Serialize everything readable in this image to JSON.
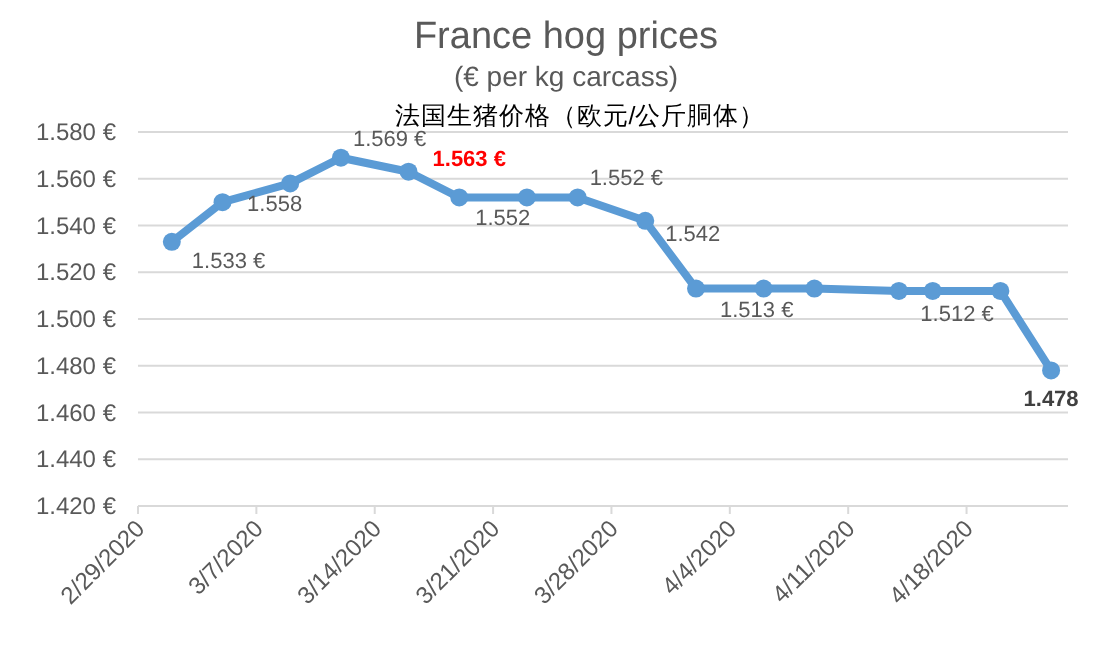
{
  "chart_data": {
    "type": "line",
    "title": "France hog prices",
    "subtitle": "(€ per kg carcass)",
    "annotations": [
      "法国生猪价格（欧元/公斤胴体）"
    ],
    "x": [
      "2020-03-02",
      "2020-03-05",
      "2020-03-09",
      "2020-03-12",
      "2020-03-16",
      "2020-03-19",
      "2020-03-23",
      "2020-03-26",
      "2020-03-30",
      "2020-04-02",
      "2020-04-06",
      "2020-04-09",
      "2020-04-14",
      "2020-04-16",
      "2020-04-20",
      "2020-04-23"
    ],
    "series": [
      {
        "color": "#5b9bd5",
        "values": [
          1.533,
          1.55,
          1.558,
          1.569,
          1.563,
          1.552,
          1.552,
          1.552,
          1.542,
          1.513,
          1.513,
          1.513,
          1.512,
          1.512,
          1.512,
          1.478
        ],
        "value_labels": [
          "1.533 €",
          null,
          "1.558",
          "1.569 €",
          "1.563 €",
          "1.552",
          null,
          "1.552 €",
          "1.542",
          "1.513 €",
          null,
          null,
          null,
          null,
          "1.512 €",
          "1.478"
        ]
      }
    ],
    "xlim": [
      "2020-02-29",
      "2020-04-24"
    ],
    "xticks": [
      {
        "value": "2020-02-29",
        "label": "2/29/2020"
      },
      {
        "value": "2020-03-07",
        "label": "3/7/2020"
      },
      {
        "value": "2020-03-14",
        "label": "3/14/2020"
      },
      {
        "value": "2020-03-21",
        "label": "3/21/2020"
      },
      {
        "value": "2020-03-28",
        "label": "3/28/2020"
      },
      {
        "value": "2020-04-04",
        "label": "4/4/2020"
      },
      {
        "value": "2020-04-11",
        "label": "4/11/2020"
      },
      {
        "value": "2020-04-18",
        "label": "4/18/2020"
      }
    ],
    "ylim": [
      1.42,
      1.58
    ],
    "yticks": [
      {
        "value": 1.42,
        "label": "1.420 €"
      },
      {
        "value": 1.44,
        "label": "1.440 €"
      },
      {
        "value": 1.46,
        "label": "1.460 €"
      },
      {
        "value": 1.48,
        "label": "1.480 €"
      },
      {
        "value": 1.5,
        "label": "1.500 €"
      },
      {
        "value": 1.52,
        "label": "1.520 €"
      },
      {
        "value": 1.54,
        "label": "1.540 €"
      },
      {
        "value": 1.56,
        "label": "1.560 €"
      },
      {
        "value": 1.58,
        "label": "1.580 €"
      }
    ],
    "grid": "y",
    "marker": "circle",
    "line_style": "solid"
  }
}
